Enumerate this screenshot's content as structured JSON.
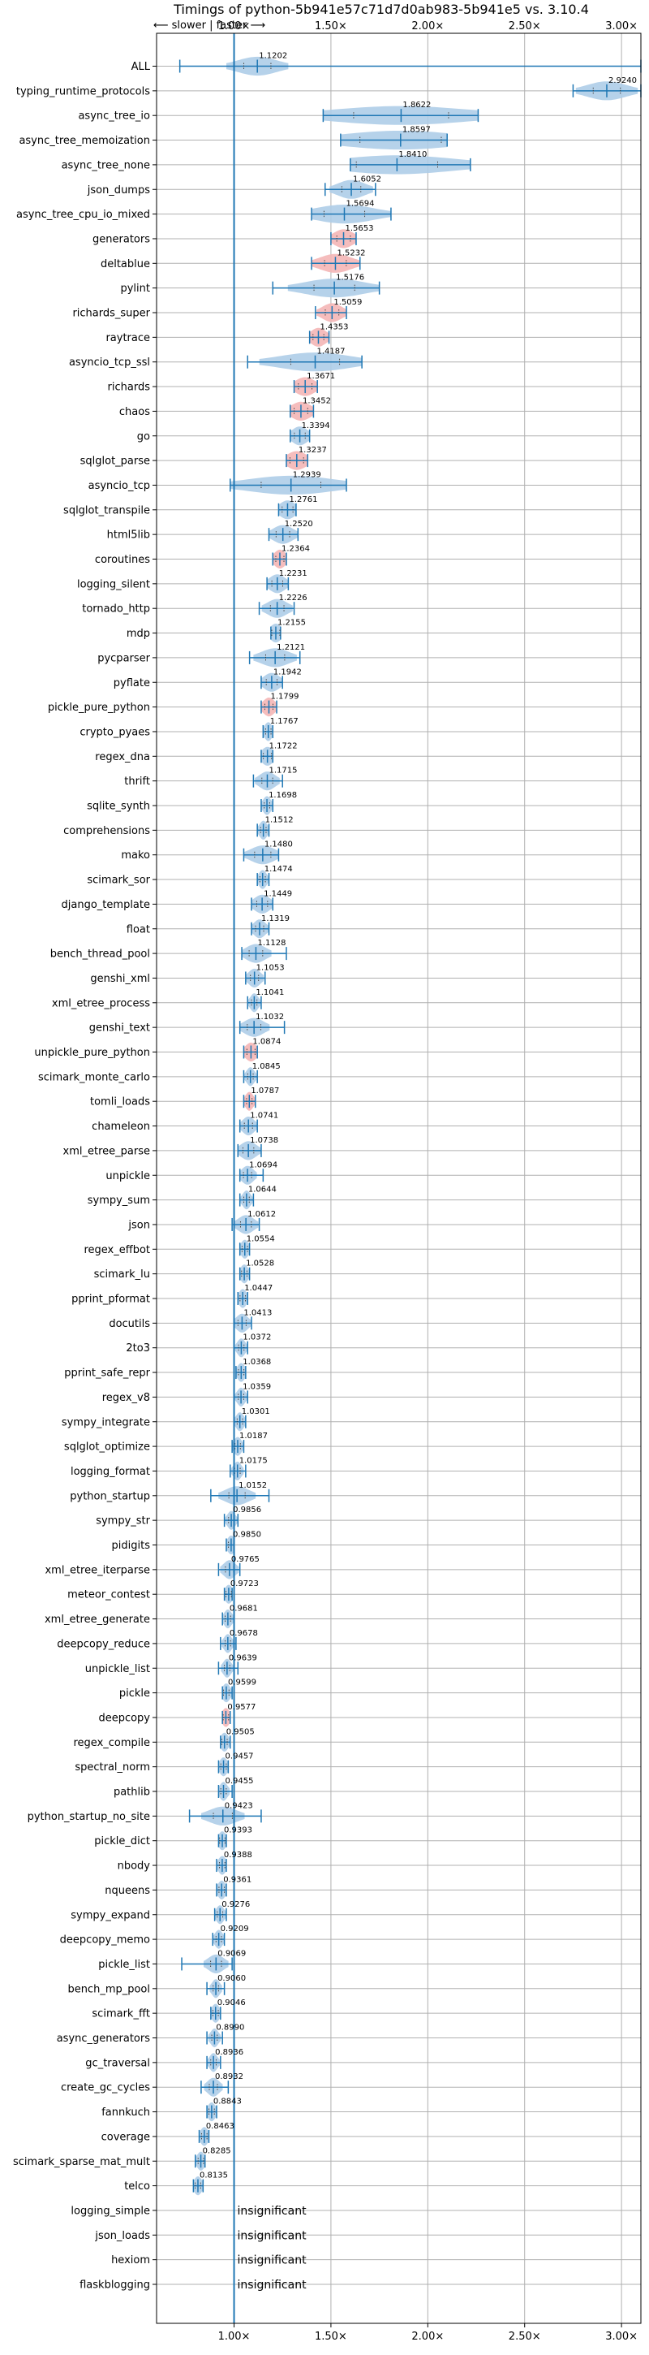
{
  "chart_data": {
    "type": "violin",
    "title": "Timings of python-5b941e57c71d7d0ab983-5b941e5 vs. 3.10.4",
    "subtitle": "⟵ slower | faster ⟶",
    "xlim": [
      0.6,
      3.1
    ],
    "x_ticks": [
      1.0,
      1.5,
      2.0,
      2.5,
      3.0
    ],
    "x_tick_labels": [
      "1.00×",
      "1.50×",
      "2.00×",
      "2.50×",
      "3.00×"
    ],
    "grid": true,
    "reference_line": 1.0,
    "insignificant_label": "insignificant",
    "colors": {
      "faster": "#aecde8",
      "slower": "#f4b6b6",
      "marks": "#1f77b4"
    },
    "benchmarks": [
      {
        "name": "ALL",
        "label": "1.1202",
        "median": 1.1202,
        "min": 0.72,
        "max": 3.1,
        "spread": 0.1,
        "color": "blue"
      },
      {
        "name": "typing_runtime_protocols",
        "label": "2.9240",
        "median": 2.924,
        "min": 2.75,
        "max": 3.1,
        "spread": 0.1,
        "color": "blue"
      },
      {
        "name": "async_tree_io",
        "label": "1.8622",
        "median": 1.8622,
        "min": 1.46,
        "max": 2.26,
        "spread": 0.35,
        "color": "blue"
      },
      {
        "name": "async_tree_memoization",
        "label": "1.8597",
        "median": 1.8597,
        "min": 1.55,
        "max": 2.1,
        "spread": 0.3,
        "color": "blue"
      },
      {
        "name": "async_tree_none",
        "label": "1.8410",
        "median": 1.841,
        "min": 1.6,
        "max": 2.22,
        "spread": 0.3,
        "color": "blue"
      },
      {
        "name": "json_dumps",
        "label": "1.6052",
        "median": 1.6052,
        "min": 1.47,
        "max": 1.73,
        "spread": 0.07,
        "color": "blue"
      },
      {
        "name": "async_tree_cpu_io_mixed",
        "label": "1.5694",
        "median": 1.5694,
        "min": 1.4,
        "max": 1.81,
        "spread": 0.15,
        "color": "blue"
      },
      {
        "name": "generators",
        "label": "1.5653",
        "median": 1.5653,
        "min": 1.5,
        "max": 1.63,
        "spread": 0.05,
        "color": "red"
      },
      {
        "name": "deltablue",
        "label": "1.5232",
        "median": 1.5232,
        "min": 1.4,
        "max": 1.65,
        "spread": 0.08,
        "color": "red"
      },
      {
        "name": "pylint",
        "label": "1.5176",
        "median": 1.5176,
        "min": 1.2,
        "max": 1.75,
        "spread": 0.15,
        "color": "blue"
      },
      {
        "name": "richards_super",
        "label": "1.5059",
        "median": 1.5059,
        "min": 1.42,
        "max": 1.58,
        "spread": 0.05,
        "color": "red"
      },
      {
        "name": "raytrace",
        "label": "1.4353",
        "median": 1.4353,
        "min": 1.39,
        "max": 1.49,
        "spread": 0.04,
        "color": "red"
      },
      {
        "name": "asyncio_tcp_ssl",
        "label": "1.4187",
        "median": 1.4187,
        "min": 1.07,
        "max": 1.66,
        "spread": 0.18,
        "color": "blue"
      },
      {
        "name": "richards",
        "label": "1.3671",
        "median": 1.3671,
        "min": 1.31,
        "max": 1.43,
        "spread": 0.05,
        "color": "red"
      },
      {
        "name": "chaos",
        "label": "1.3452",
        "median": 1.3452,
        "min": 1.29,
        "max": 1.41,
        "spread": 0.05,
        "color": "red"
      },
      {
        "name": "go",
        "label": "1.3394",
        "median": 1.3394,
        "min": 1.29,
        "max": 1.39,
        "spread": 0.04,
        "color": "blue"
      },
      {
        "name": "sqlglot_parse",
        "label": "1.3237",
        "median": 1.3237,
        "min": 1.27,
        "max": 1.38,
        "spread": 0.05,
        "color": "red"
      },
      {
        "name": "asyncio_tcp",
        "label": "1.2939",
        "median": 1.2939,
        "min": 0.98,
        "max": 1.58,
        "spread": 0.22,
        "color": "blue"
      },
      {
        "name": "sqlglot_transpile",
        "label": "1.2761",
        "median": 1.2761,
        "min": 1.23,
        "max": 1.32,
        "spread": 0.04,
        "color": "blue"
      },
      {
        "name": "html5lib",
        "label": "1.2520",
        "median": 1.252,
        "min": 1.18,
        "max": 1.33,
        "spread": 0.05,
        "color": "blue"
      },
      {
        "name": "coroutines",
        "label": "1.2364",
        "median": 1.2364,
        "min": 1.2,
        "max": 1.27,
        "spread": 0.03,
        "color": "red"
      },
      {
        "name": "logging_silent",
        "label": "1.2231",
        "median": 1.2231,
        "min": 1.17,
        "max": 1.28,
        "spread": 0.04,
        "color": "blue"
      },
      {
        "name": "tornado_http",
        "label": "1.2226",
        "median": 1.2226,
        "min": 1.13,
        "max": 1.31,
        "spread": 0.05,
        "color": "blue"
      },
      {
        "name": "mdp",
        "label": "1.2155",
        "median": 1.2155,
        "min": 1.19,
        "max": 1.24,
        "spread": 0.03,
        "color": "blue"
      },
      {
        "name": "pycparser",
        "label": "1.2121",
        "median": 1.2121,
        "min": 1.08,
        "max": 1.34,
        "spread": 0.07,
        "color": "blue"
      },
      {
        "name": "pyflate",
        "label": "1.1942",
        "median": 1.1942,
        "min": 1.14,
        "max": 1.25,
        "spread": 0.04,
        "color": "blue"
      },
      {
        "name": "pickle_pure_python",
        "label": "1.1799",
        "median": 1.1799,
        "min": 1.14,
        "max": 1.22,
        "spread": 0.03,
        "color": "red"
      },
      {
        "name": "crypto_pyaes",
        "label": "1.1767",
        "median": 1.1767,
        "min": 1.15,
        "max": 1.2,
        "spread": 0.02,
        "color": "blue"
      },
      {
        "name": "regex_dna",
        "label": "1.1722",
        "median": 1.1722,
        "min": 1.14,
        "max": 1.2,
        "spread": 0.03,
        "color": "blue"
      },
      {
        "name": "thrift",
        "label": "1.1715",
        "median": 1.1715,
        "min": 1.1,
        "max": 1.25,
        "spread": 0.04,
        "color": "blue"
      },
      {
        "name": "sqlite_synth",
        "label": "1.1698",
        "median": 1.1698,
        "min": 1.14,
        "max": 1.2,
        "spread": 0.02,
        "color": "blue"
      },
      {
        "name": "comprehensions",
        "label": "1.1512",
        "median": 1.1512,
        "min": 1.12,
        "max": 1.18,
        "spread": 0.02,
        "color": "blue"
      },
      {
        "name": "mako",
        "label": "1.1480",
        "median": 1.148,
        "min": 1.05,
        "max": 1.23,
        "spread": 0.06,
        "color": "blue"
      },
      {
        "name": "scimark_sor",
        "label": "1.1474",
        "median": 1.1474,
        "min": 1.12,
        "max": 1.18,
        "spread": 0.02,
        "color": "blue"
      },
      {
        "name": "django_template",
        "label": "1.1449",
        "median": 1.1449,
        "min": 1.09,
        "max": 1.2,
        "spread": 0.04,
        "color": "blue"
      },
      {
        "name": "float",
        "label": "1.1319",
        "median": 1.1319,
        "min": 1.09,
        "max": 1.18,
        "spread": 0.03,
        "color": "blue"
      },
      {
        "name": "bench_thread_pool",
        "label": "1.1128",
        "median": 1.1128,
        "min": 1.04,
        "max": 1.27,
        "spread": 0.05,
        "color": "blue"
      },
      {
        "name": "genshi_xml",
        "label": "1.1053",
        "median": 1.1053,
        "min": 1.06,
        "max": 1.16,
        "spread": 0.03,
        "color": "blue"
      },
      {
        "name": "xml_etree_process",
        "label": "1.1041",
        "median": 1.1041,
        "min": 1.07,
        "max": 1.14,
        "spread": 0.02,
        "color": "blue"
      },
      {
        "name": "genshi_text",
        "label": "1.1032",
        "median": 1.1032,
        "min": 1.03,
        "max": 1.26,
        "spread": 0.05,
        "color": "blue"
      },
      {
        "name": "unpickle_pure_python",
        "label": "1.0874",
        "median": 1.0874,
        "min": 1.05,
        "max": 1.12,
        "spread": 0.03,
        "color": "red"
      },
      {
        "name": "scimark_monte_carlo",
        "label": "1.0845",
        "median": 1.0845,
        "min": 1.05,
        "max": 1.12,
        "spread": 0.02,
        "color": "blue"
      },
      {
        "name": "tomli_loads",
        "label": "1.0787",
        "median": 1.0787,
        "min": 1.05,
        "max": 1.11,
        "spread": 0.02,
        "color": "red"
      },
      {
        "name": "chameleon",
        "label": "1.0741",
        "median": 1.0741,
        "min": 1.03,
        "max": 1.12,
        "spread": 0.03,
        "color": "blue"
      },
      {
        "name": "xml_etree_parse",
        "label": "1.0738",
        "median": 1.0738,
        "min": 1.02,
        "max": 1.14,
        "spread": 0.04,
        "color": "blue"
      },
      {
        "name": "unpickle",
        "label": "1.0694",
        "median": 1.0694,
        "min": 1.03,
        "max": 1.15,
        "spread": 0.03,
        "color": "blue"
      },
      {
        "name": "sympy_sum",
        "label": "1.0644",
        "median": 1.0644,
        "min": 1.03,
        "max": 1.1,
        "spread": 0.02,
        "color": "blue"
      },
      {
        "name": "json",
        "label": "1.0612",
        "median": 1.0612,
        "min": 0.99,
        "max": 1.13,
        "spread": 0.04,
        "color": "blue"
      },
      {
        "name": "regex_effbot",
        "label": "1.0554",
        "median": 1.0554,
        "min": 1.03,
        "max": 1.08,
        "spread": 0.02,
        "color": "blue"
      },
      {
        "name": "scimark_lu",
        "label": "1.0528",
        "median": 1.0528,
        "min": 1.03,
        "max": 1.08,
        "spread": 0.02,
        "color": "blue"
      },
      {
        "name": "pprint_pformat",
        "label": "1.0447",
        "median": 1.0447,
        "min": 1.02,
        "max": 1.07,
        "spread": 0.02,
        "color": "blue"
      },
      {
        "name": "docutils",
        "label": "1.0413",
        "median": 1.0413,
        "min": 1.0,
        "max": 1.09,
        "spread": 0.03,
        "color": "blue"
      },
      {
        "name": "2to3",
        "label": "1.0372",
        "median": 1.0372,
        "min": 1.0,
        "max": 1.07,
        "spread": 0.02,
        "color": "blue"
      },
      {
        "name": "pprint_safe_repr",
        "label": "1.0368",
        "median": 1.0368,
        "min": 1.01,
        "max": 1.06,
        "spread": 0.02,
        "color": "blue"
      },
      {
        "name": "regex_v8",
        "label": "1.0359",
        "median": 1.0359,
        "min": 1.0,
        "max": 1.07,
        "spread": 0.02,
        "color": "blue"
      },
      {
        "name": "sympy_integrate",
        "label": "1.0301",
        "median": 1.0301,
        "min": 1.0,
        "max": 1.06,
        "spread": 0.02,
        "color": "blue"
      },
      {
        "name": "sqlglot_optimize",
        "label": "1.0187",
        "median": 1.0187,
        "min": 0.99,
        "max": 1.05,
        "spread": 0.02,
        "color": "blue"
      },
      {
        "name": "logging_format",
        "label": "1.0175",
        "median": 1.0175,
        "min": 0.98,
        "max": 1.06,
        "spread": 0.02,
        "color": "blue"
      },
      {
        "name": "python_startup",
        "label": "1.0152",
        "median": 1.0152,
        "min": 0.88,
        "max": 1.18,
        "spread": 0.06,
        "color": "blue"
      },
      {
        "name": "sympy_str",
        "label": "0.9856",
        "median": 0.9856,
        "min": 0.95,
        "max": 1.02,
        "spread": 0.02,
        "color": "blue"
      },
      {
        "name": "pidigits",
        "label": "0.9850",
        "median": 0.985,
        "min": 0.96,
        "max": 1.0,
        "spread": 0.02,
        "color": "blue"
      },
      {
        "name": "xml_etree_iterparse",
        "label": "0.9765",
        "median": 0.9765,
        "min": 0.92,
        "max": 1.03,
        "spread": 0.03,
        "color": "blue"
      },
      {
        "name": "meteor_contest",
        "label": "0.9723",
        "median": 0.9723,
        "min": 0.95,
        "max": 0.99,
        "spread": 0.02,
        "color": "blue"
      },
      {
        "name": "xml_etree_generate",
        "label": "0.9681",
        "median": 0.9681,
        "min": 0.94,
        "max": 1.0,
        "spread": 0.02,
        "color": "blue"
      },
      {
        "name": "deepcopy_reduce",
        "label": "0.9678",
        "median": 0.9678,
        "min": 0.93,
        "max": 1.01,
        "spread": 0.02,
        "color": "blue"
      },
      {
        "name": "unpickle_list",
        "label": "0.9639",
        "median": 0.9639,
        "min": 0.92,
        "max": 1.02,
        "spread": 0.02,
        "color": "blue"
      },
      {
        "name": "pickle",
        "label": "0.9599",
        "median": 0.9599,
        "min": 0.94,
        "max": 0.99,
        "spread": 0.02,
        "color": "blue"
      },
      {
        "name": "deepcopy",
        "label": "0.9577",
        "median": 0.9577,
        "min": 0.94,
        "max": 0.98,
        "spread": 0.02,
        "color": "red"
      },
      {
        "name": "regex_compile",
        "label": "0.9505",
        "median": 0.9505,
        "min": 0.93,
        "max": 0.98,
        "spread": 0.02,
        "color": "blue"
      },
      {
        "name": "spectral_norm",
        "label": "0.9457",
        "median": 0.9457,
        "min": 0.92,
        "max": 0.97,
        "spread": 0.02,
        "color": "blue"
      },
      {
        "name": "pathlib",
        "label": "0.9455",
        "median": 0.9455,
        "min": 0.92,
        "max": 0.99,
        "spread": 0.02,
        "color": "blue"
      },
      {
        "name": "python_startup_no_site",
        "label": "0.9423",
        "median": 0.9423,
        "min": 0.77,
        "max": 1.14,
        "spread": 0.07,
        "color": "blue"
      },
      {
        "name": "pickle_dict",
        "label": "0.9393",
        "median": 0.9393,
        "min": 0.92,
        "max": 0.96,
        "spread": 0.02,
        "color": "blue"
      },
      {
        "name": "nbody",
        "label": "0.9388",
        "median": 0.9388,
        "min": 0.91,
        "max": 0.96,
        "spread": 0.02,
        "color": "blue"
      },
      {
        "name": "nqueens",
        "label": "0.9361",
        "median": 0.9361,
        "min": 0.91,
        "max": 0.96,
        "spread": 0.02,
        "color": "blue"
      },
      {
        "name": "sympy_expand",
        "label": "0.9276",
        "median": 0.9276,
        "min": 0.9,
        "max": 0.96,
        "spread": 0.02,
        "color": "blue"
      },
      {
        "name": "deepcopy_memo",
        "label": "0.9209",
        "median": 0.9209,
        "min": 0.89,
        "max": 0.95,
        "spread": 0.02,
        "color": "blue"
      },
      {
        "name": "pickle_list",
        "label": "0.9069",
        "median": 0.9069,
        "min": 0.73,
        "max": 0.99,
        "spread": 0.04,
        "color": "blue"
      },
      {
        "name": "bench_mp_pool",
        "label": "0.9060",
        "median": 0.906,
        "min": 0.86,
        "max": 0.95,
        "spread": 0.02,
        "color": "blue"
      },
      {
        "name": "scimark_fft",
        "label": "0.9046",
        "median": 0.9046,
        "min": 0.88,
        "max": 0.93,
        "spread": 0.02,
        "color": "blue"
      },
      {
        "name": "async_generators",
        "label": "0.8990",
        "median": 0.899,
        "min": 0.86,
        "max": 0.94,
        "spread": 0.02,
        "color": "blue"
      },
      {
        "name": "gc_traversal",
        "label": "0.8936",
        "median": 0.8936,
        "min": 0.86,
        "max": 0.93,
        "spread": 0.02,
        "color": "blue"
      },
      {
        "name": "create_gc_cycles",
        "label": "0.8932",
        "median": 0.8932,
        "min": 0.83,
        "max": 0.97,
        "spread": 0.03,
        "color": "blue"
      },
      {
        "name": "fannkuch",
        "label": "0.8843",
        "median": 0.8843,
        "min": 0.86,
        "max": 0.91,
        "spread": 0.02,
        "color": "blue"
      },
      {
        "name": "coverage",
        "label": "0.8463",
        "median": 0.8463,
        "min": 0.82,
        "max": 0.87,
        "spread": 0.02,
        "color": "blue"
      },
      {
        "name": "scimark_sparse_mat_mult",
        "label": "0.8285",
        "median": 0.8285,
        "min": 0.8,
        "max": 0.85,
        "spread": 0.02,
        "color": "blue"
      },
      {
        "name": "telco",
        "label": "0.8135",
        "median": 0.8135,
        "min": 0.79,
        "max": 0.84,
        "spread": 0.02,
        "color": "blue"
      },
      {
        "name": "logging_simple",
        "label": "",
        "insignificant": true
      },
      {
        "name": "json_loads",
        "label": "",
        "insignificant": true
      },
      {
        "name": "hexiom",
        "label": "",
        "insignificant": true
      },
      {
        "name": "flaskblogging",
        "label": "",
        "insignificant": true
      }
    ]
  }
}
